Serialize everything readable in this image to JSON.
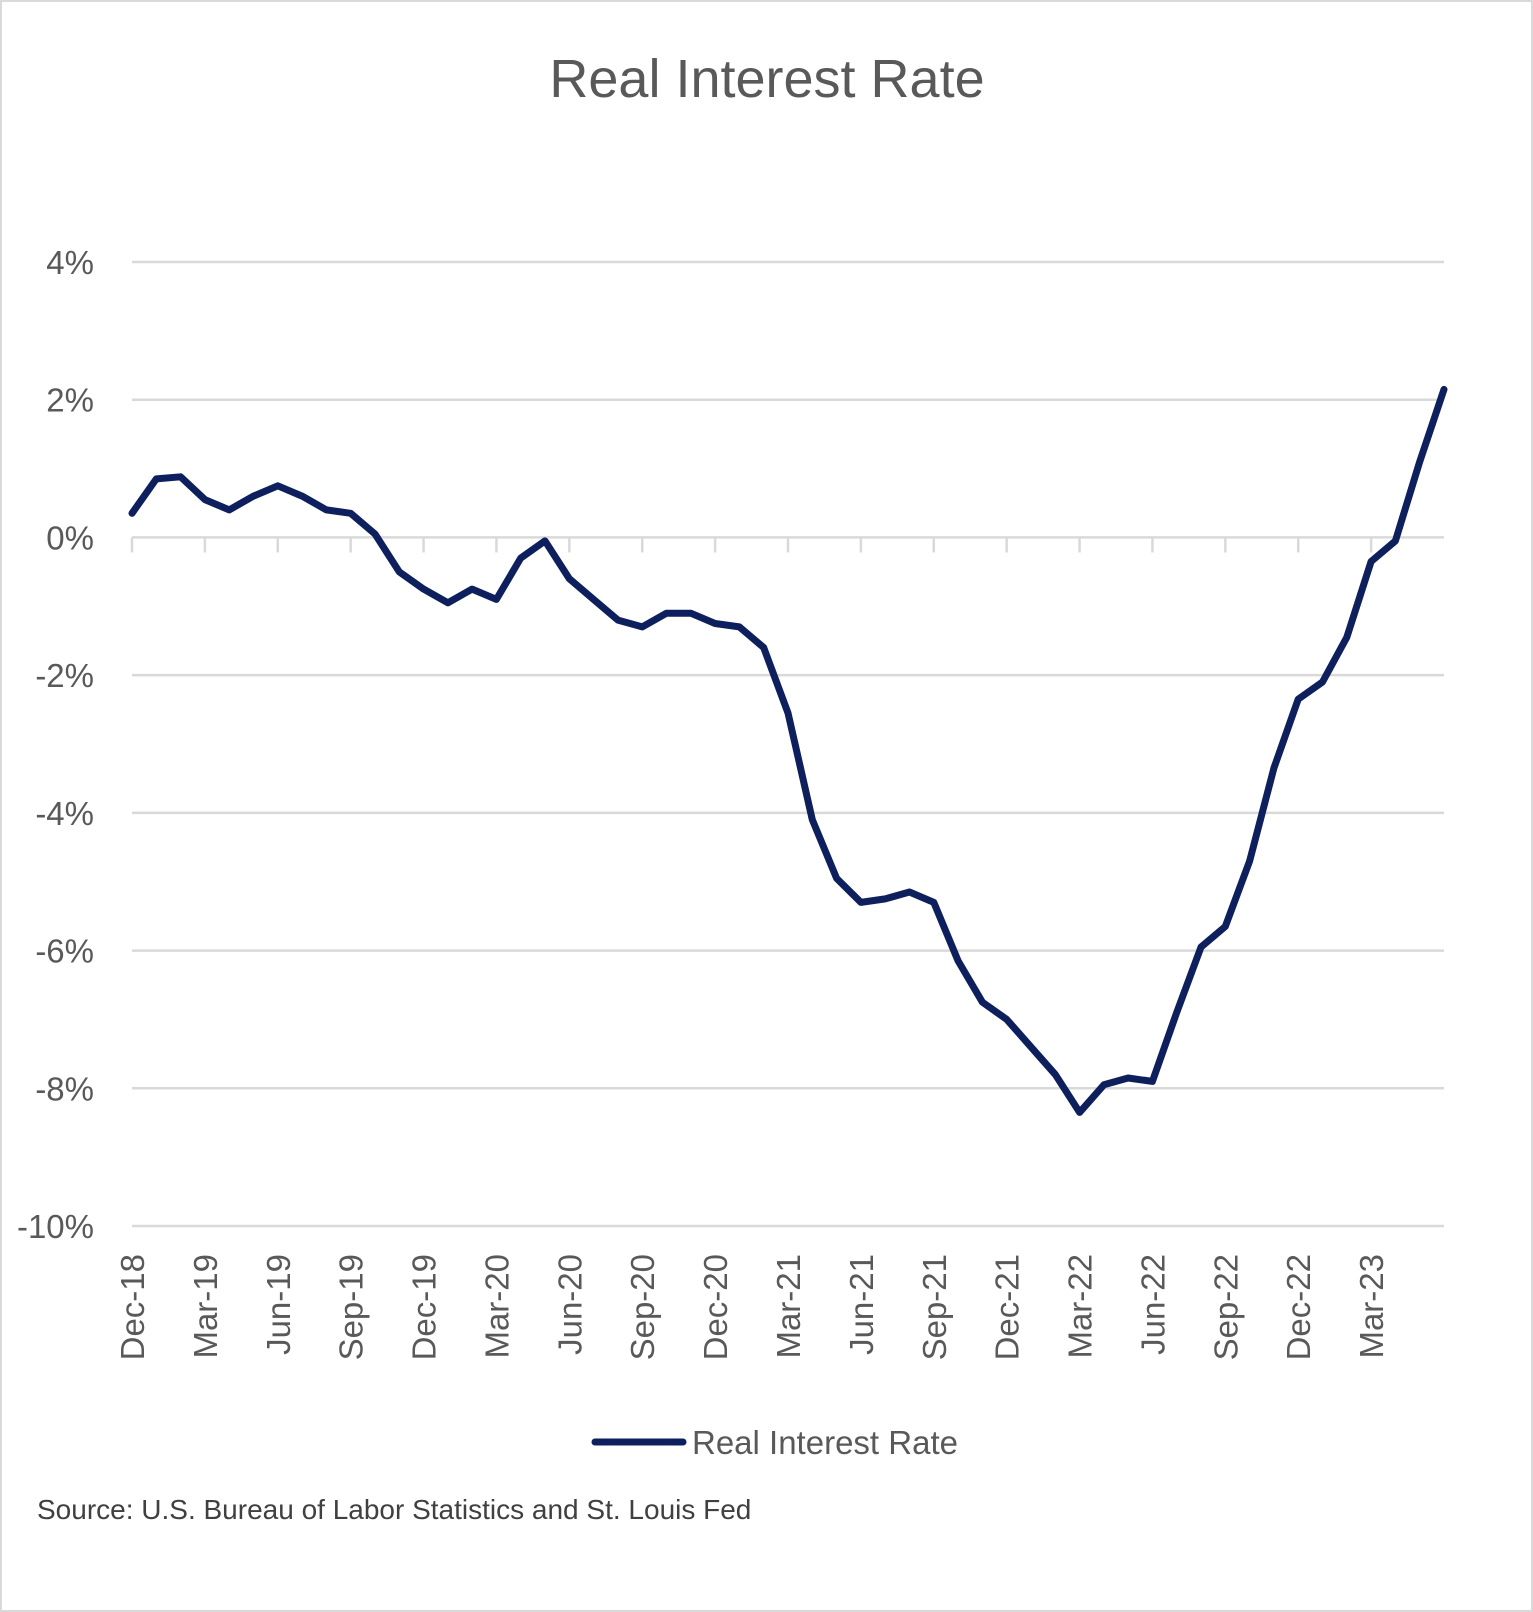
{
  "chart_data": {
    "type": "line",
    "title": "Real Interest Rate",
    "source": "Source: U.S. Bureau of Labor Statistics and St. Louis Fed",
    "legend": {
      "position": "bottom"
    },
    "grid": true,
    "line_color": "#0d1f5c",
    "grid_color": "#d9d9d9",
    "xlabel": "",
    "ylabel": "",
    "ylim": [
      -10,
      4
    ],
    "y_ticks": [
      "4%",
      "2%",
      "0%",
      "-2%",
      "-4%",
      "-6%",
      "-8%",
      "-10%"
    ],
    "x_ticks": [
      "Dec-18",
      "Mar-19",
      "Jun-19",
      "Sep-19",
      "Dec-19",
      "Mar-20",
      "Jun-20",
      "Sep-20",
      "Dec-20",
      "Mar-21",
      "Jun-21",
      "Sep-21",
      "Dec-21",
      "Mar-22",
      "Jun-22",
      "Sep-22",
      "Dec-22",
      "Mar-23"
    ],
    "x": [
      "Dec-18",
      "Jan-19",
      "Feb-19",
      "Mar-19",
      "Apr-19",
      "May-19",
      "Jun-19",
      "Jul-19",
      "Aug-19",
      "Sep-19",
      "Oct-19",
      "Nov-19",
      "Dec-19",
      "Jan-20",
      "Feb-20",
      "Mar-20",
      "Apr-20",
      "May-20",
      "Jun-20",
      "Jul-20",
      "Aug-20",
      "Sep-20",
      "Oct-20",
      "Nov-20",
      "Dec-20",
      "Jan-21",
      "Feb-21",
      "Mar-21",
      "Apr-21",
      "May-21",
      "Jun-21",
      "Jul-21",
      "Aug-21",
      "Sep-21",
      "Oct-21",
      "Nov-21",
      "Dec-21",
      "Jan-22",
      "Feb-22",
      "Mar-22",
      "Apr-22",
      "May-22",
      "Jun-22",
      "Jul-22",
      "Aug-22",
      "Sep-22",
      "Oct-22",
      "Nov-22",
      "Dec-22",
      "Jan-23",
      "Feb-23",
      "Mar-23",
      "Apr-23",
      "May-23",
      "Jun-23"
    ],
    "series": [
      {
        "name": "Real Interest Rate",
        "values": [
          0.35,
          0.85,
          0.88,
          0.55,
          0.4,
          0.6,
          0.75,
          0.6,
          0.4,
          0.35,
          0.05,
          -0.5,
          -0.75,
          -0.95,
          -0.75,
          -0.9,
          -0.3,
          -0.05,
          -0.6,
          -0.9,
          -1.2,
          -1.3,
          -1.1,
          -1.1,
          -1.25,
          -1.3,
          -1.6,
          -2.55,
          -4.1,
          -4.95,
          -5.3,
          -5.25,
          -5.15,
          -5.3,
          -6.15,
          -6.75,
          -7.0,
          -7.4,
          -7.8,
          -8.35,
          -7.95,
          -7.85,
          -7.9,
          -6.9,
          -5.95,
          -5.65,
          -4.7,
          -3.35,
          -2.35,
          -2.1,
          -1.45,
          -0.35,
          -0.05,
          1.1,
          2.15
        ]
      }
    ]
  }
}
